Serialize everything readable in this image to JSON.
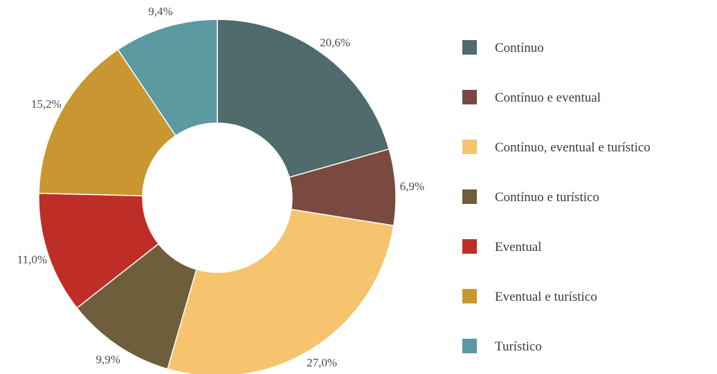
{
  "chart_data": {
    "type": "pie",
    "title": "",
    "categories": [
      "Contínuo",
      "Contínuo e eventual",
      "Contínuo, eventual e turístico",
      "Contínuo e turístico",
      "Eventual",
      "Eventual e turístico",
      "Turístico"
    ],
    "values": [
      20.6,
      6.9,
      27.0,
      9.9,
      11.0,
      15.2,
      9.4
    ],
    "value_labels": [
      "20,6%",
      "6,9%",
      "27,0%",
      "9,9%",
      "11,0%",
      "15,2%",
      "9,4%"
    ],
    "colors": [
      "#4f6b6b",
      "#7a4a40",
      "#f6c46e",
      "#6f5e3c",
      "#bf2e26",
      "#c99631",
      "#5b9aa1"
    ],
    "donut": true,
    "legend_position": "right"
  }
}
